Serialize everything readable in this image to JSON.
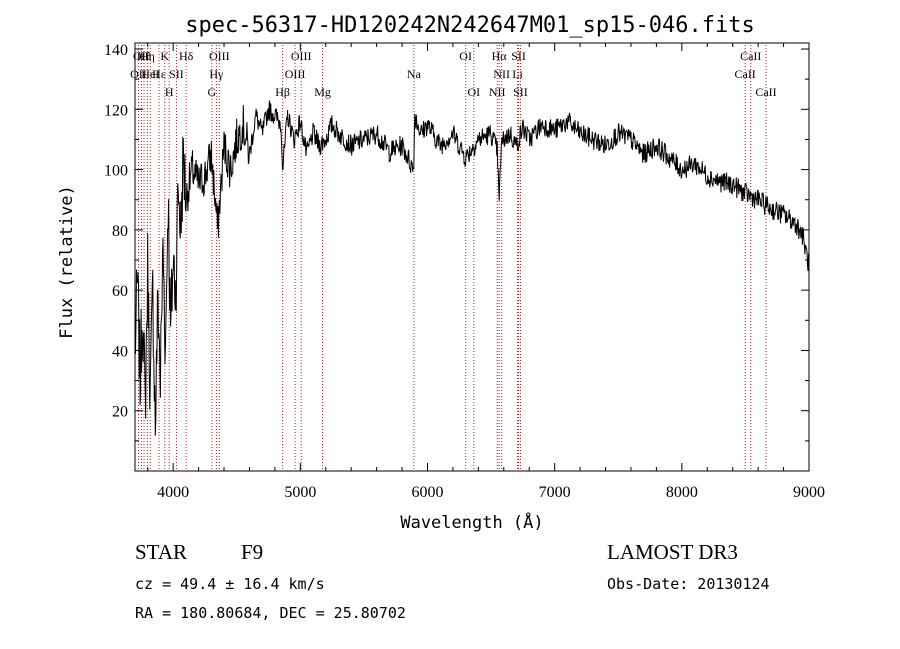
{
  "chart_data": {
    "type": "line",
    "title": "spec-56317-HD120242N242647M01_sp15-046.fits",
    "xlabel": "Wavelength (Å)",
    "ylabel": "Flux (relative)",
    "xlim": [
      3700,
      9000
    ],
    "ylim": [
      0,
      142
    ],
    "x_ticks": [
      4000,
      5000,
      6000,
      7000,
      8000,
      9000
    ],
    "y_ticks": [
      20,
      40,
      60,
      80,
      100,
      120,
      140
    ],
    "line_color": "#000000",
    "marker_color": "#b22222",
    "spectrum": {
      "name": "flux",
      "x": [
        3700,
        3720,
        3740,
        3760,
        3780,
        3800,
        3820,
        3840,
        3860,
        3880,
        3900,
        3920,
        3940,
        3960,
        3980,
        4000,
        4020,
        4040,
        4060,
        4080,
        4100,
        4150,
        4200,
        4250,
        4300,
        4350,
        4400,
        4450,
        4500,
        4550,
        4600,
        4650,
        4700,
        4750,
        4800,
        4850,
        4861,
        4900,
        4950,
        5000,
        5050,
        5100,
        5150,
        5200,
        5250,
        5300,
        5400,
        5500,
        5600,
        5700,
        5800,
        5890,
        5900,
        5950,
        6000,
        6100,
        6200,
        6300,
        6400,
        6500,
        6550,
        6563,
        6580,
        6600,
        6650,
        6700,
        6750,
        6800,
        6900,
        7000,
        7100,
        7200,
        7300,
        7400,
        7500,
        7600,
        7700,
        7800,
        7900,
        8000,
        8100,
        8200,
        8300,
        8400,
        8500,
        8600,
        8700,
        8800,
        8900,
        8950,
        9000
      ],
      "y": [
        40,
        62,
        30,
        55,
        20,
        68,
        25,
        60,
        15,
        58,
        30,
        75,
        40,
        92,
        45,
        70,
        60,
        95,
        80,
        105,
        90,
        100,
        95,
        98,
        105,
        80,
        108,
        100,
        110,
        115,
        105,
        118,
        112,
        120,
        118,
        115,
        100,
        118,
        110,
        116,
        105,
        112,
        108,
        110,
        115,
        112,
        108,
        110,
        112,
        106,
        108,
        100,
        118,
        112,
        115,
        108,
        112,
        104,
        110,
        112,
        106,
        88,
        108,
        110,
        112,
        108,
        114,
        110,
        115,
        113,
        116,
        112,
        110,
        108,
        112,
        110,
        105,
        108,
        104,
        100,
        102,
        98,
        96,
        95,
        92,
        90,
        87,
        85,
        82,
        78,
        68
      ]
    },
    "line_markers": [
      {
        "wl": 3727,
        "row": 2,
        "label": "OII"
      },
      {
        "wl": 3750,
        "row": 1,
        "label": "OII"
      },
      {
        "wl": 3771,
        "row": 1,
        "label": "Hθ"
      },
      {
        "wl": 3798,
        "row": 1,
        "label": "Hη"
      },
      {
        "wl": 3820,
        "row": 2,
        "label": "HeI"
      },
      {
        "wl": 3889,
        "row": 2,
        "label": "Hε"
      },
      {
        "wl": 3934,
        "row": 1,
        "label": "K"
      },
      {
        "wl": 3969,
        "row": 3,
        "label": "H"
      },
      {
        "wl": 4026,
        "row": 2,
        "label": "SII"
      },
      {
        "wl": 4102,
        "row": 1,
        "label": "Hδ"
      },
      {
        "wl": 4304,
        "row": 3,
        "label": "G"
      },
      {
        "wl": 4340,
        "row": 2,
        "label": "Hγ"
      },
      {
        "wl": 4363,
        "row": 1,
        "label": "OIII"
      },
      {
        "wl": 4861,
        "row": 3,
        "label": "Hβ"
      },
      {
        "wl": 4959,
        "row": 2,
        "label": "OIII"
      },
      {
        "wl": 5007,
        "row": 1,
        "label": "OIII"
      },
      {
        "wl": 5175,
        "row": 3,
        "label": "Mg"
      },
      {
        "wl": 5893,
        "row": 2,
        "label": "Na"
      },
      {
        "wl": 6300,
        "row": 1,
        "label": "OI"
      },
      {
        "wl": 6364,
        "row": 3,
        "label": "OI"
      },
      {
        "wl": 6548,
        "row": 3,
        "label": "NII"
      },
      {
        "wl": 6563,
        "row": 1,
        "label": "Hα"
      },
      {
        "wl": 6583,
        "row": 2,
        "label": "NII"
      },
      {
        "wl": 6708,
        "row": 2,
        "label": "Li"
      },
      {
        "wl": 6716,
        "row": 1,
        "label": "SII"
      },
      {
        "wl": 6731,
        "row": 3,
        "label": "SII"
      },
      {
        "wl": 8498,
        "row": 2,
        "label": "CaII"
      },
      {
        "wl": 8542,
        "row": 1,
        "label": "CaII"
      },
      {
        "wl": 8662,
        "row": 3,
        "label": "CaII"
      }
    ]
  },
  "info": {
    "class": "STAR",
    "subclass": "F9",
    "survey": "LAMOST DR3",
    "cz": "cz = 49.4 ± 16.4 km/s",
    "obs_date": "Obs-Date: 20130124",
    "coords": "RA = 180.80684, DEC =  25.80702"
  }
}
